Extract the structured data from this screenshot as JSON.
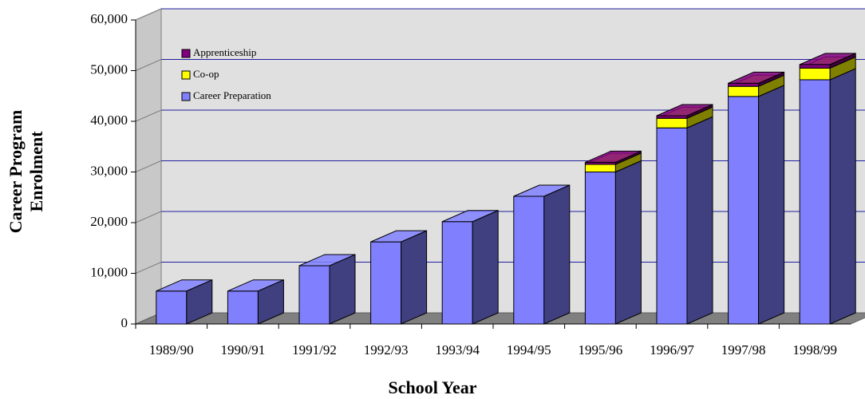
{
  "chart_data": {
    "type": "bar3d_stacked",
    "x_label": "School Year",
    "y_label": [
      "Career Program",
      "Enrolment"
    ],
    "categories": [
      "1989/90",
      "1990/91",
      "1991/92",
      "1992/93",
      "1993/94",
      "1994/95",
      "1995/96",
      "1996/97",
      "1997/98",
      "1998/99"
    ],
    "series": [
      {
        "name": "Career Preparation",
        "color": "#8080ff",
        "side": "#404080",
        "values": [
          6500,
          6500,
          11500,
          16200,
          20200,
          25200,
          30000,
          38700,
          44900,
          48200
        ]
      },
      {
        "name": "Co-op",
        "color": "#ffff00",
        "side": "#808000",
        "values": [
          0,
          0,
          0,
          0,
          0,
          0,
          1500,
          1900,
          2000,
          2300
        ]
      },
      {
        "name": "Apprenticeship",
        "color": "#800080",
        "side": "#400040",
        "values": [
          0,
          0,
          0,
          0,
          0,
          0,
          400,
          500,
          600,
          700
        ]
      }
    ],
    "ylim": [
      0,
      60000
    ],
    "yticks": [
      0,
      {
        "value": 10000,
        "label": "10,000"
      },
      {
        "value": 20000,
        "label": "20,000"
      },
      {
        "value": 30000,
        "label": "30,000"
      },
      {
        "value": 40000,
        "label": "40,000"
      },
      {
        "value": 50000,
        "label": "50,000"
      },
      {
        "value": 60000,
        "label": "60,000"
      }
    ],
    "grid": true,
    "legend": "top-left"
  }
}
